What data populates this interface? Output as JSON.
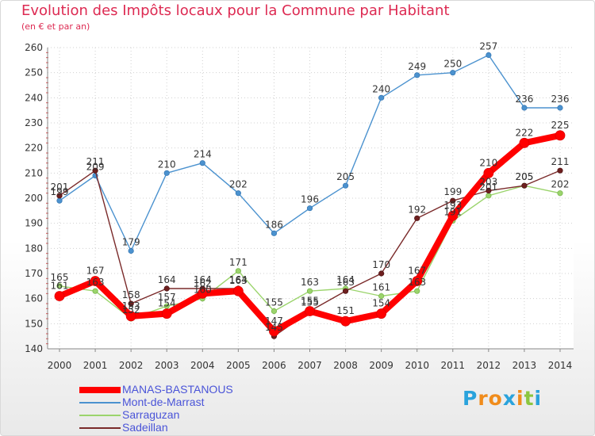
{
  "title": "Evolution des Impôts locaux pour la Commune par Habitant",
  "subtitle": "(en € et par an)",
  "logo": {
    "letters": [
      "P",
      "r",
      "o",
      "x",
      "i",
      "t",
      "i"
    ],
    "colors": [
      "#2aa3dc",
      "#f08c1c",
      "#f08c1c",
      "#2aa3dc",
      "#f08c1c",
      "#8cc63f",
      "#2aa3dc"
    ]
  },
  "chart_data": {
    "type": "line",
    "title": "Evolution des Impôts locaux pour la Commune par Habitant",
    "subtitle": "(en € et par an)",
    "xlabel": "",
    "ylabel": "",
    "x": [
      2000,
      2001,
      2002,
      2003,
      2004,
      2005,
      2006,
      2007,
      2008,
      2009,
      2010,
      2011,
      2012,
      2013,
      2014
    ],
    "ylim": [
      140,
      260
    ],
    "yticks": [
      140,
      150,
      160,
      170,
      180,
      190,
      200,
      210,
      220,
      230,
      240,
      250,
      260
    ],
    "grid": true,
    "legend_position": "bottom-left",
    "series": [
      {
        "name": "Mont-de-Marrast",
        "color": "#4b92cf",
        "values": [
          199,
          209,
          179,
          210,
          214,
          202,
          186,
          196,
          205,
          240,
          249,
          250,
          257,
          236,
          236
        ]
      },
      {
        "name": "Sarraguzan",
        "color": "#9bd46c",
        "values": [
          165,
          163,
          152,
          157,
          160,
          171,
          155,
          163,
          164,
          161,
          163,
          191,
          201,
          205,
          202
        ]
      },
      {
        "name": "Sadeillan",
        "color": "#7a2a2a",
        "values": [
          201,
          211,
          158,
          164,
          164,
          164,
          145,
          155,
          163,
          170,
          192,
          199,
          203,
          205,
          211
        ]
      },
      {
        "name": "MANAS-BASTANOUS",
        "color": "#ff0000",
        "values": [
          161,
          167,
          153,
          154,
          162,
          163,
          147,
          155,
          151,
          154,
          167,
          193,
          210,
          222,
          225
        ]
      }
    ],
    "legend": [
      "MANAS-BASTANOUS",
      "Mont-de-Marrast",
      "Sarraguzan",
      "Sadeillan"
    ]
  }
}
